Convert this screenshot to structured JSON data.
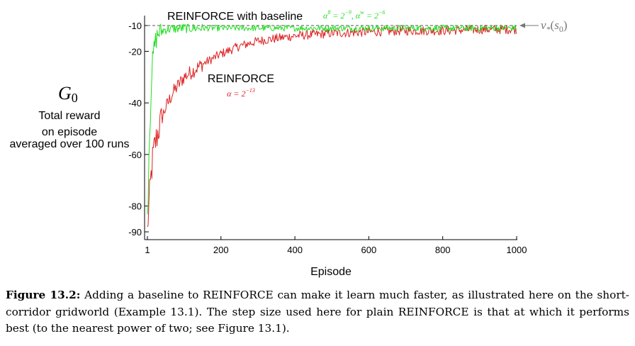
{
  "chart_data": {
    "type": "line",
    "xlabel": "Episode",
    "ylabel": {
      "symbol": "G",
      "subscript": "0",
      "lines": [
        "Total reward",
        "on episode"
      ],
      "note": "averaged over 100 runs"
    },
    "xlim": [
      1,
      1000
    ],
    "ylim": [
      -92,
      -9
    ],
    "xticks": [
      1,
      200,
      400,
      600,
      800,
      1000
    ],
    "yticks": [
      -10,
      -20,
      -40,
      -60,
      -80,
      -90
    ],
    "series": [
      {
        "name": "REINFORCE with baseline",
        "color": "#22dd22",
        "label_params": "α^θ = 2^−9, α^w = 2^−6",
        "x": [
          1,
          3,
          5,
          8,
          10,
          12,
          15,
          20,
          25,
          30,
          40,
          50,
          70,
          100,
          150,
          200,
          300,
          400,
          500,
          600,
          700,
          800,
          900,
          1000
        ],
        "values": [
          -84,
          -75,
          -60,
          -48,
          -40,
          -30,
          -24,
          -18,
          -15,
          -13,
          -12,
          -11.5,
          -11.2,
          -11,
          -11,
          -11,
          -11,
          -11,
          -11,
          -11,
          -11,
          -11,
          -11,
          -11
        ]
      },
      {
        "name": "REINFORCE",
        "color": "#dd2222",
        "label_params": "α = 2^−13",
        "x": [
          1,
          3,
          5,
          10,
          15,
          20,
          30,
          40,
          50,
          70,
          100,
          150,
          200,
          250,
          300,
          350,
          400,
          500,
          600,
          700,
          800,
          900,
          1000
        ],
        "values": [
          -90,
          -85,
          -80,
          -70,
          -62,
          -57,
          -51,
          -46,
          -42,
          -36,
          -30,
          -25,
          -21,
          -18,
          -16,
          -15,
          -14,
          -13,
          -12.5,
          -12,
          -12,
          -11.5,
          -11.5
        ]
      }
    ],
    "reference_line": {
      "label": "v_*(s_0)",
      "value": -10
    }
  },
  "caption": {
    "label": "Figure 13.2:",
    "text": "Adding a baseline to REINFORCE can make it learn much faster, as illustrated here on the short-corridor gridworld (Example 13.1). The step size used here for plain REINFORCE is that at which it performs best (to the nearest power of two; see Figure 13.1)."
  }
}
